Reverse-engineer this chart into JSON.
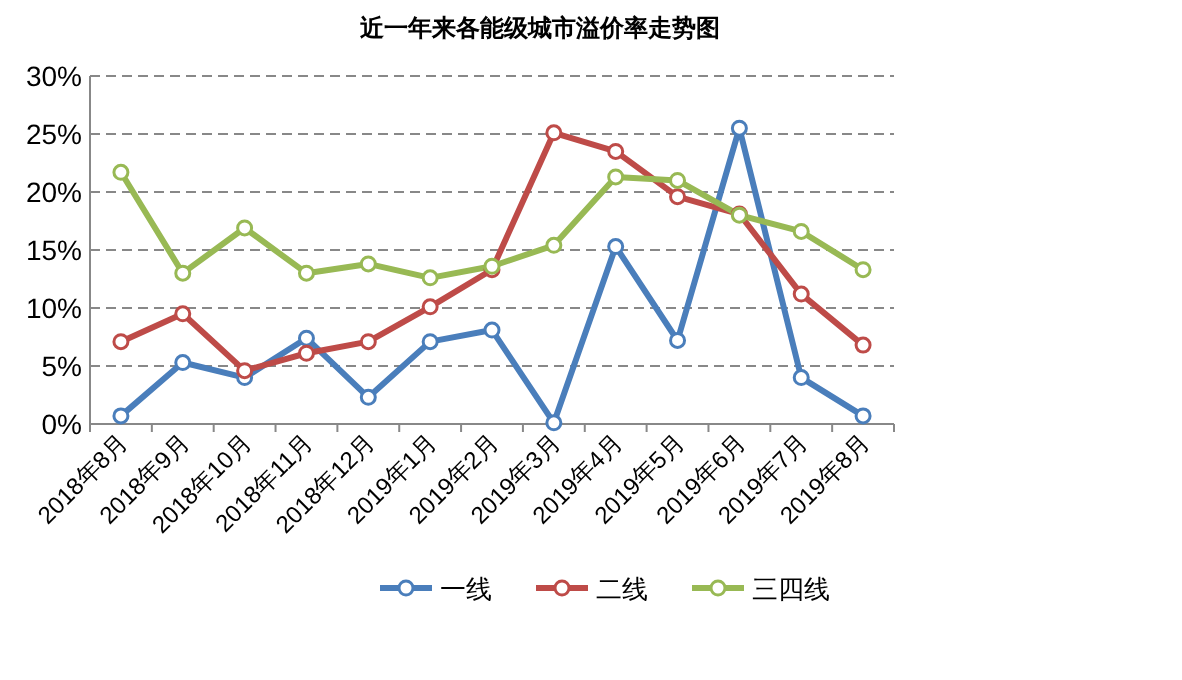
{
  "chart_data": {
    "type": "line",
    "title": "近一年来各能级城市溢价率走势图",
    "categories": [
      "2018年8月",
      "2018年9月",
      "2018年10月",
      "2018年11月",
      "2018年12月",
      "2019年1月",
      "2019年2月",
      "2019年3月",
      "2019年4月",
      "2019年5月",
      "2019年6月",
      "2019年7月",
      "2019年8月"
    ],
    "series": [
      {
        "name": "一线",
        "color": "#4a7ebb",
        "values": [
          0.7,
          5.3,
          4.0,
          7.4,
          2.3,
          7.1,
          8.1,
          0.1,
          15.3,
          7.2,
          25.5,
          4.0,
          0.7
        ]
      },
      {
        "name": "二线",
        "color": "#be4b48",
        "values": [
          7.1,
          9.5,
          4.6,
          6.1,
          7.1,
          10.1,
          13.3,
          25.1,
          23.5,
          19.6,
          18.1,
          11.2,
          6.8
        ]
      },
      {
        "name": "三四线",
        "color": "#98b954",
        "values": [
          21.7,
          13.0,
          16.9,
          13.0,
          13.8,
          12.6,
          13.6,
          15.4,
          21.3,
          21.0,
          18.0,
          16.6,
          13.3
        ]
      }
    ],
    "ylim": [
      0,
      30
    ],
    "yticks": [
      {
        "value": 0,
        "label": "0%"
      },
      {
        "value": 5,
        "label": "5%"
      },
      {
        "value": 10,
        "label": "10%"
      },
      {
        "value": 15,
        "label": "15%"
      },
      {
        "value": 20,
        "label": "20%"
      },
      {
        "value": 25,
        "label": "25%"
      },
      {
        "value": 30,
        "label": "30%"
      }
    ],
    "grid": "y",
    "legend": "bottom",
    "marker": "circle",
    "line_style": "solid"
  }
}
